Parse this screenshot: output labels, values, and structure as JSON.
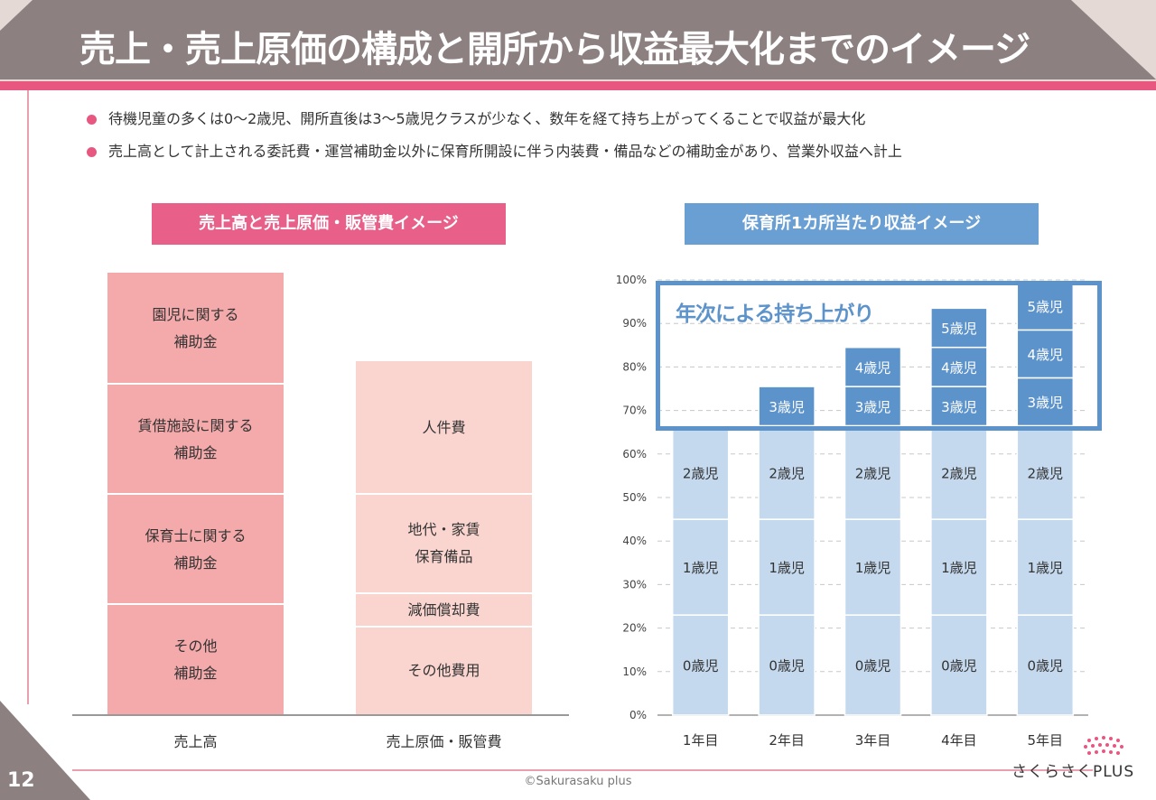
{
  "header": {
    "title": "売上・売上原価の構成と開所から収益最大化までのイメージ",
    "accent_color": "#e8577f",
    "bar_color": "#8c8080"
  },
  "bullets": [
    "待機児童の多くは0～2歳児、開所直後は3～5歳児クラスが少なく、数年を経て持ち上がってくることで収益が最大化",
    "売上高として計上される委託費・運営補助金以外に保育所開設に伴う内装費・備品などの補助金があり、営業外収益へ計上"
  ],
  "sections": {
    "left_label": "売上高と売上原価・販管費イメージ",
    "right_label": "保育所1カ所当たり収益イメージ"
  },
  "left_chart": {
    "revenue": {
      "category": "売上高",
      "blocks": [
        {
          "line1": "園児に関する",
          "line2": "補助金"
        },
        {
          "line1": "賃借施設に関する",
          "line2": "補助金"
        },
        {
          "line1": "保育士に関する",
          "line2": "補助金"
        },
        {
          "line1": "その他",
          "line2": "補助金"
        }
      ]
    },
    "cost": {
      "category": "売上原価・販管費",
      "blocks": [
        {
          "line1": "人件費"
        },
        {
          "line1": "地代・家賃",
          "line2": "保育備品"
        },
        {
          "line1": "減価償却費"
        },
        {
          "line1": "その他費用"
        }
      ]
    }
  },
  "highlight_label": "年次による持ち上がり",
  "chart_data": {
    "type": "bar",
    "stacked": true,
    "title": "保育所1カ所当たり収益イメージ",
    "categories": [
      "1年目",
      "2年目",
      "3年目",
      "4年目",
      "5年目"
    ],
    "ylim": [
      0,
      100
    ],
    "yticks": [
      "0%",
      "10%",
      "20%",
      "30%",
      "40%",
      "50%",
      "60%",
      "70%",
      "80%",
      "90%",
      "100%"
    ],
    "series": [
      {
        "name": "0歳児",
        "values": [
          23,
          23,
          23,
          23,
          23
        ],
        "color": "#c5d9ee"
      },
      {
        "name": "1歳児",
        "values": [
          22,
          22,
          22,
          22,
          22
        ],
        "color": "#c5d9ee"
      },
      {
        "name": "2歳児",
        "values": [
          21.5,
          21.5,
          21.5,
          21.5,
          21.5
        ],
        "color": "#c5d9ee"
      },
      {
        "name": "3歳児",
        "values": [
          0,
          9,
          9,
          9,
          11
        ],
        "color": "#5d93cb"
      },
      {
        "name": "4歳児",
        "values": [
          0,
          0,
          9,
          9,
          11
        ],
        "color": "#5d93cb"
      },
      {
        "name": "5歳児",
        "values": [
          0,
          0,
          0,
          9,
          11
        ],
        "color": "#5d93cb"
      }
    ]
  },
  "footer": {
    "page_number": "12",
    "copyright": "©Sakurasaku plus",
    "logo": "さくらさくPLUS"
  }
}
